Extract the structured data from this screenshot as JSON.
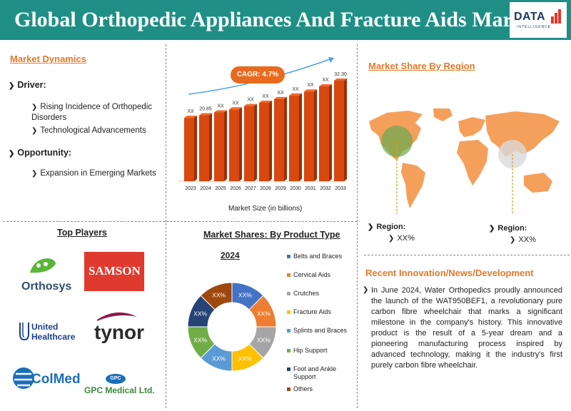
{
  "header": {
    "title": "Global Orthopedic Appliances And Fracture Aids Market",
    "logo_text": "DATA",
    "logo_sub": "INTELLIGENCE"
  },
  "dynamics": {
    "title": "Market Dynamics",
    "driver_label": "Driver:",
    "drivers": [
      "Rising Incidence of Orthopedic Disorders",
      "Technological Advancements"
    ],
    "opportunity_label": "Opportunity:",
    "opportunities": [
      "Expansion in Emerging Markets"
    ]
  },
  "players": {
    "title": "Top Players",
    "names": [
      "Orthosys",
      "SAMSON",
      "United Healthcare",
      "tynor",
      "ColMed",
      "GPC Medical Ltd."
    ],
    "gpc_badge": "GPC"
  },
  "region": {
    "title": "Market Share By Region",
    "left_label": "Region:",
    "left_value": "XX%",
    "right_label": "Region:",
    "right_value": "XX%"
  },
  "innovation": {
    "title": "Recent Innovation/News/Development",
    "text": "In June 2024, Water Orthopedics proudly announced the launch of the WAT950BEF1, a revolutionary pure carbon fibre wheelchair that marks a significant milestone in the company's history. This innovative product is the result of a 5-year dream and a pioneering manufacturing process inspired by advanced technology, making it the industry's first purely carbon fibre wheelchair."
  },
  "colors": {
    "header_bg": "#1f8f86",
    "accent_orange": "#e07a2e",
    "bar": "#d9480f"
  },
  "chart_data": [
    {
      "type": "bar",
      "categories": [
        "2023",
        "2024",
        "2025",
        "2026",
        "2027",
        "2028",
        "2029",
        "2030",
        "2031",
        "2032",
        "2033"
      ],
      "values": [
        20.0,
        20.85,
        21.8,
        22.8,
        23.9,
        25.0,
        26.2,
        27.4,
        28.7,
        30.4,
        32.3
      ],
      "data_labels": [
        "XX",
        "20.85",
        "XX",
        "XX",
        "XX",
        "XX",
        "XX",
        "XX",
        "XX",
        "XX",
        "32.30"
      ],
      "annotation": "CAGR: 4.7%",
      "title": "",
      "xlabel": "Market Size (in billions)",
      "ylabel": "",
      "ylim": [
        0,
        33
      ]
    },
    {
      "type": "pie",
      "title": "Market Shares: By Product Type",
      "subtitle": "2024",
      "categories": [
        "Belts and Braces",
        "Cervical Aids",
        "Crutches",
        "Fracture Aids",
        "Splints and Braces",
        "Hip Support",
        "Foot and Ankle Support",
        "Others"
      ],
      "values": [
        12.5,
        12.5,
        12.5,
        12.5,
        12.5,
        12.5,
        12.5,
        12.5
      ],
      "data_labels": [
        "XX%",
        "XX%",
        "XX%",
        "XX%",
        "XX%",
        "XX%",
        "XX%",
        "XX%"
      ],
      "colors": [
        "#4472c4",
        "#ed7d31",
        "#a5a5a5",
        "#ffc000",
        "#5b9bd5",
        "#70ad47",
        "#264478",
        "#9e480e"
      ],
      "legend": "right"
    }
  ]
}
